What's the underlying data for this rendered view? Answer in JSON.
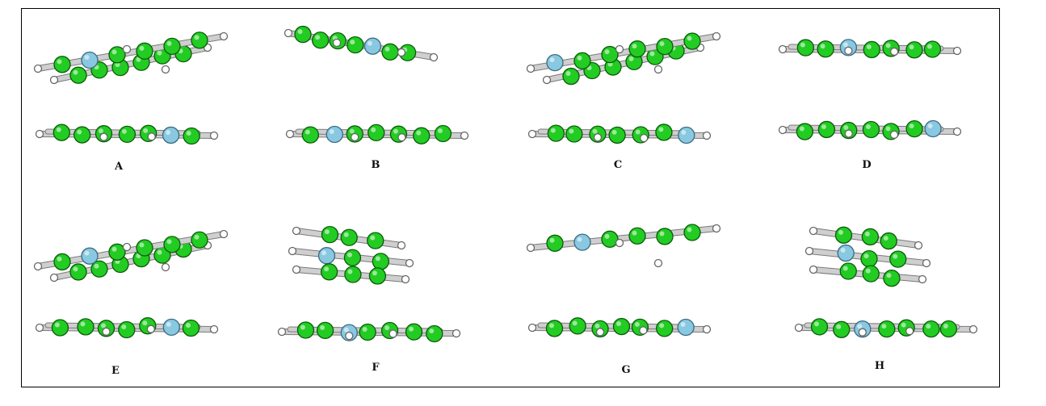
{
  "figure": {
    "panels": [
      {
        "id": "A",
        "label": "A"
      },
      {
        "id": "B",
        "label": "B"
      },
      {
        "id": "C",
        "label": "C"
      },
      {
        "id": "D",
        "label": "D"
      },
      {
        "id": "E",
        "label": "E"
      },
      {
        "id": "F",
        "label": "F"
      },
      {
        "id": "G",
        "label": "G"
      },
      {
        "id": "H",
        "label": "H"
      }
    ],
    "colors": {
      "carbon": "#22cc22",
      "carbon_edge": "#0a5a0a",
      "nitrogen": "#88c8e0",
      "nitrogen_edge": "#3a6a80",
      "hydrogen": "#ffffff",
      "hydrogen_edge": "#666666",
      "bond": "#cfcfcf",
      "bond_edge": "#7a7a7a",
      "frame": "#000000"
    },
    "atom_types": [
      "carbon",
      "nitrogen",
      "hydrogen"
    ]
  }
}
